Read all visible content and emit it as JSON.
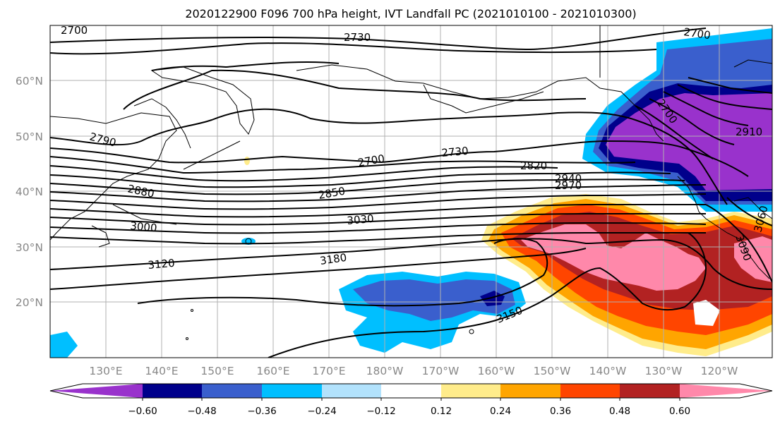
{
  "title": "2020122900 F096 700 hPa height, IVT Landfall PC (2021010100 - 2021010300)",
  "lat_labels": [
    "60°N",
    "50°N",
    "40°N",
    "30°N",
    "20°N"
  ],
  "lon_labels": [
    "130°E",
    "140°E",
    "150°E",
    "160°E",
    "170°E",
    "180°W",
    "170°W",
    "160°W",
    "150°W",
    "140°W",
    "130°W",
    "120°W"
  ],
  "colorbar": {
    "colors": [
      "#9932cc",
      "#00008b",
      "#3a5fcd",
      "#00bfff",
      "#b2e2fc",
      "#ffffff",
      "#ffec8b",
      "#ffa500",
      "#ff4500",
      "#b22222",
      "#ff88aa"
    ],
    "labels": [
      "−0.60",
      "−0.48",
      "−0.36",
      "−0.24",
      "−0.12",
      "0.12",
      "0.24",
      "0.36",
      "0.48",
      "0.60"
    ]
  },
  "contour_labels": [
    "2700",
    "2730",
    "2700",
    "2790",
    "2880",
    "3000",
    "3120",
    "2700",
    "2730",
    "2820",
    "2850",
    "3030",
    "3180",
    "2940",
    "2970",
    "3150",
    "2910",
    "3060",
    "3090",
    "2700"
  ]
}
